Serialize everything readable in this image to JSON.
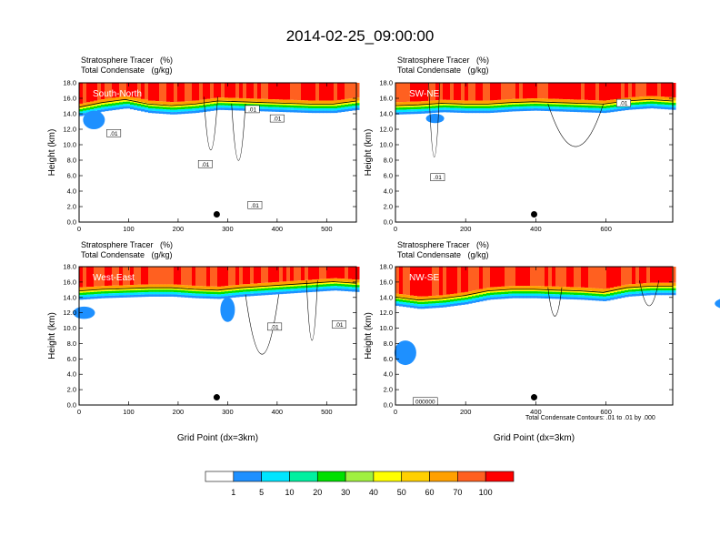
{
  "figure": {
    "title": "2014-02-25_09:00:00",
    "contour_note": "Total Condensate Contours: .01 to .01 by .000"
  },
  "chart_data": [
    {
      "type": "heatmap",
      "panel": "South-North",
      "header_line1": "Stratosphere Tracer   (%)",
      "header_line2": "Total Condensate   (g/kg)",
      "xlabel": "",
      "ylabel": "Height (km)",
      "xlim": [
        0,
        560
      ],
      "ylim": [
        0,
        18
      ],
      "xticks": [
        0,
        100,
        200,
        300,
        400,
        500
      ],
      "yticks": [
        0,
        2,
        4,
        6,
        8,
        10,
        12,
        14,
        16,
        18
      ],
      "tropopause_km": [
        14.6,
        15.2,
        15.6,
        15.0,
        14.8,
        15.0,
        15.4,
        15.3,
        15.2,
        15.1,
        15.0,
        15.0,
        15.4
      ],
      "marker": {
        "x": 278,
        "y": 1.0
      },
      "contour_labels": [
        {
          "text": ".01",
          "x": 70,
          "y": 11.5
        },
        {
          "text": ".01",
          "x": 255,
          "y": 7.5
        },
        {
          "text": ".01",
          "x": 350,
          "y": 14.6
        },
        {
          "text": ".01",
          "x": 400,
          "y": 13.4
        },
        {
          "text": ".01",
          "x": 355,
          "y": 2.2
        }
      ]
    },
    {
      "type": "heatmap",
      "panel": "SW-NE",
      "header_line1": "Stratosphere Tracer   (%)",
      "header_line2": "Total Condensate   (g/kg)",
      "xlabel": "",
      "ylabel": "Height (km)",
      "xlim": [
        0,
        790
      ],
      "ylim": [
        0,
        18
      ],
      "xticks": [
        0,
        200,
        400,
        600
      ],
      "yticks": [
        0,
        2,
        4,
        6,
        8,
        10,
        12,
        14,
        16,
        18
      ],
      "tropopause_km": [
        14.8,
        14.9,
        15.1,
        15.0,
        15.0,
        15.2,
        15.3,
        15.2,
        15.1,
        15.0,
        15.4,
        15.6,
        15.4
      ],
      "marker": {
        "x": 395,
        "y": 1.0
      },
      "contour_labels": [
        {
          "text": ".01",
          "x": 120,
          "y": 5.8
        },
        {
          "text": ".01",
          "x": 650,
          "y": 15.4
        }
      ]
    },
    {
      "type": "heatmap",
      "panel": "West-East",
      "header_line1": "Stratosphere Tracer   (%)",
      "header_line2": "Total Condensate   (g/kg)",
      "xlabel": "Grid Point (dx=3km)",
      "ylabel": "Height (km)",
      "xlim": [
        0,
        560
      ],
      "ylim": [
        0,
        18
      ],
      "xticks": [
        0,
        100,
        200,
        300,
        400,
        500
      ],
      "yticks": [
        0,
        2,
        4,
        6,
        8,
        10,
        12,
        14,
        16,
        18
      ],
      "tropopause_km": [
        14.6,
        14.8,
        14.9,
        15.0,
        15.0,
        14.8,
        14.7,
        15.0,
        15.2,
        15.4,
        15.6,
        15.8,
        15.6
      ],
      "marker": {
        "x": 278,
        "y": 1.0
      },
      "contour_labels": [
        {
          "text": ".01",
          "x": 395,
          "y": 10.2
        },
        {
          "text": ".01",
          "x": 525,
          "y": 10.5
        }
      ]
    },
    {
      "type": "heatmap",
      "panel": "NW-SE",
      "header_line1": "Stratosphere Tracer   (%)",
      "header_line2": "Total Condensate   (g/kg)",
      "xlabel": "Grid Point (dx=3km)",
      "ylabel": "Height (km)",
      "xlim": [
        0,
        790
      ],
      "ylim": [
        0,
        18
      ],
      "xticks": [
        0,
        200,
        400,
        600
      ],
      "yticks": [
        0,
        2,
        4,
        6,
        8,
        10,
        12,
        14,
        16,
        18
      ],
      "tropopause_km": [
        13.8,
        13.4,
        13.6,
        14.0,
        14.6,
        14.8,
        14.8,
        14.7,
        14.6,
        14.4,
        15.0,
        15.2,
        15.2
      ],
      "marker": {
        "x": 395,
        "y": 1.0
      },
      "contour_labels": [
        {
          "text": "000000",
          "x": 85,
          "y": 0.5
        }
      ]
    }
  ],
  "colorbar": {
    "labels": [
      "1",
      "5",
      "10",
      "20",
      "30",
      "40",
      "50",
      "60",
      "70",
      "100"
    ],
    "colors": [
      "#ffffff",
      "#1e90ff",
      "#00e5ff",
      "#00f0a0",
      "#00e000",
      "#a0f040",
      "#ffff00",
      "#ffd000",
      "#ffa000",
      "#ff6020",
      "#ff0000"
    ]
  },
  "colors": {
    "contour": "#000000",
    "marker": "#000000"
  }
}
